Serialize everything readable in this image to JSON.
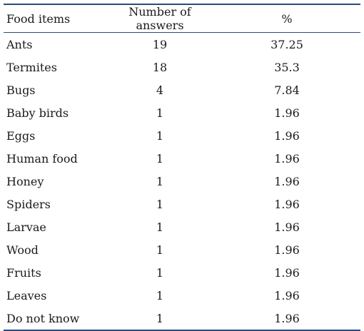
{
  "table": {
    "headers": [
      "Food items",
      "Number of answers",
      "%"
    ],
    "rows": [
      [
        "Ants",
        "19",
        "37.25"
      ],
      [
        "Termites",
        "18",
        "35.3"
      ],
      [
        "Bugs",
        "4",
        "7.84"
      ],
      [
        "Baby birds",
        "1",
        "1.96"
      ],
      [
        "Eggs",
        "1",
        "1.96"
      ],
      [
        "Human food",
        "1",
        "1.96"
      ],
      [
        "Honey",
        "1",
        "1.96"
      ],
      [
        "Spiders",
        "1",
        "1.96"
      ],
      [
        "Larvae",
        "1",
        "1.96"
      ],
      [
        "Wood",
        "1",
        "1.96"
      ],
      [
        "Fruits",
        "1",
        "1.96"
      ],
      [
        "Leaves",
        "1",
        "1.96"
      ],
      [
        "Do not know",
        "1",
        "1.96"
      ]
    ]
  },
  "colors": {
    "rule": "#2c4a7a"
  }
}
